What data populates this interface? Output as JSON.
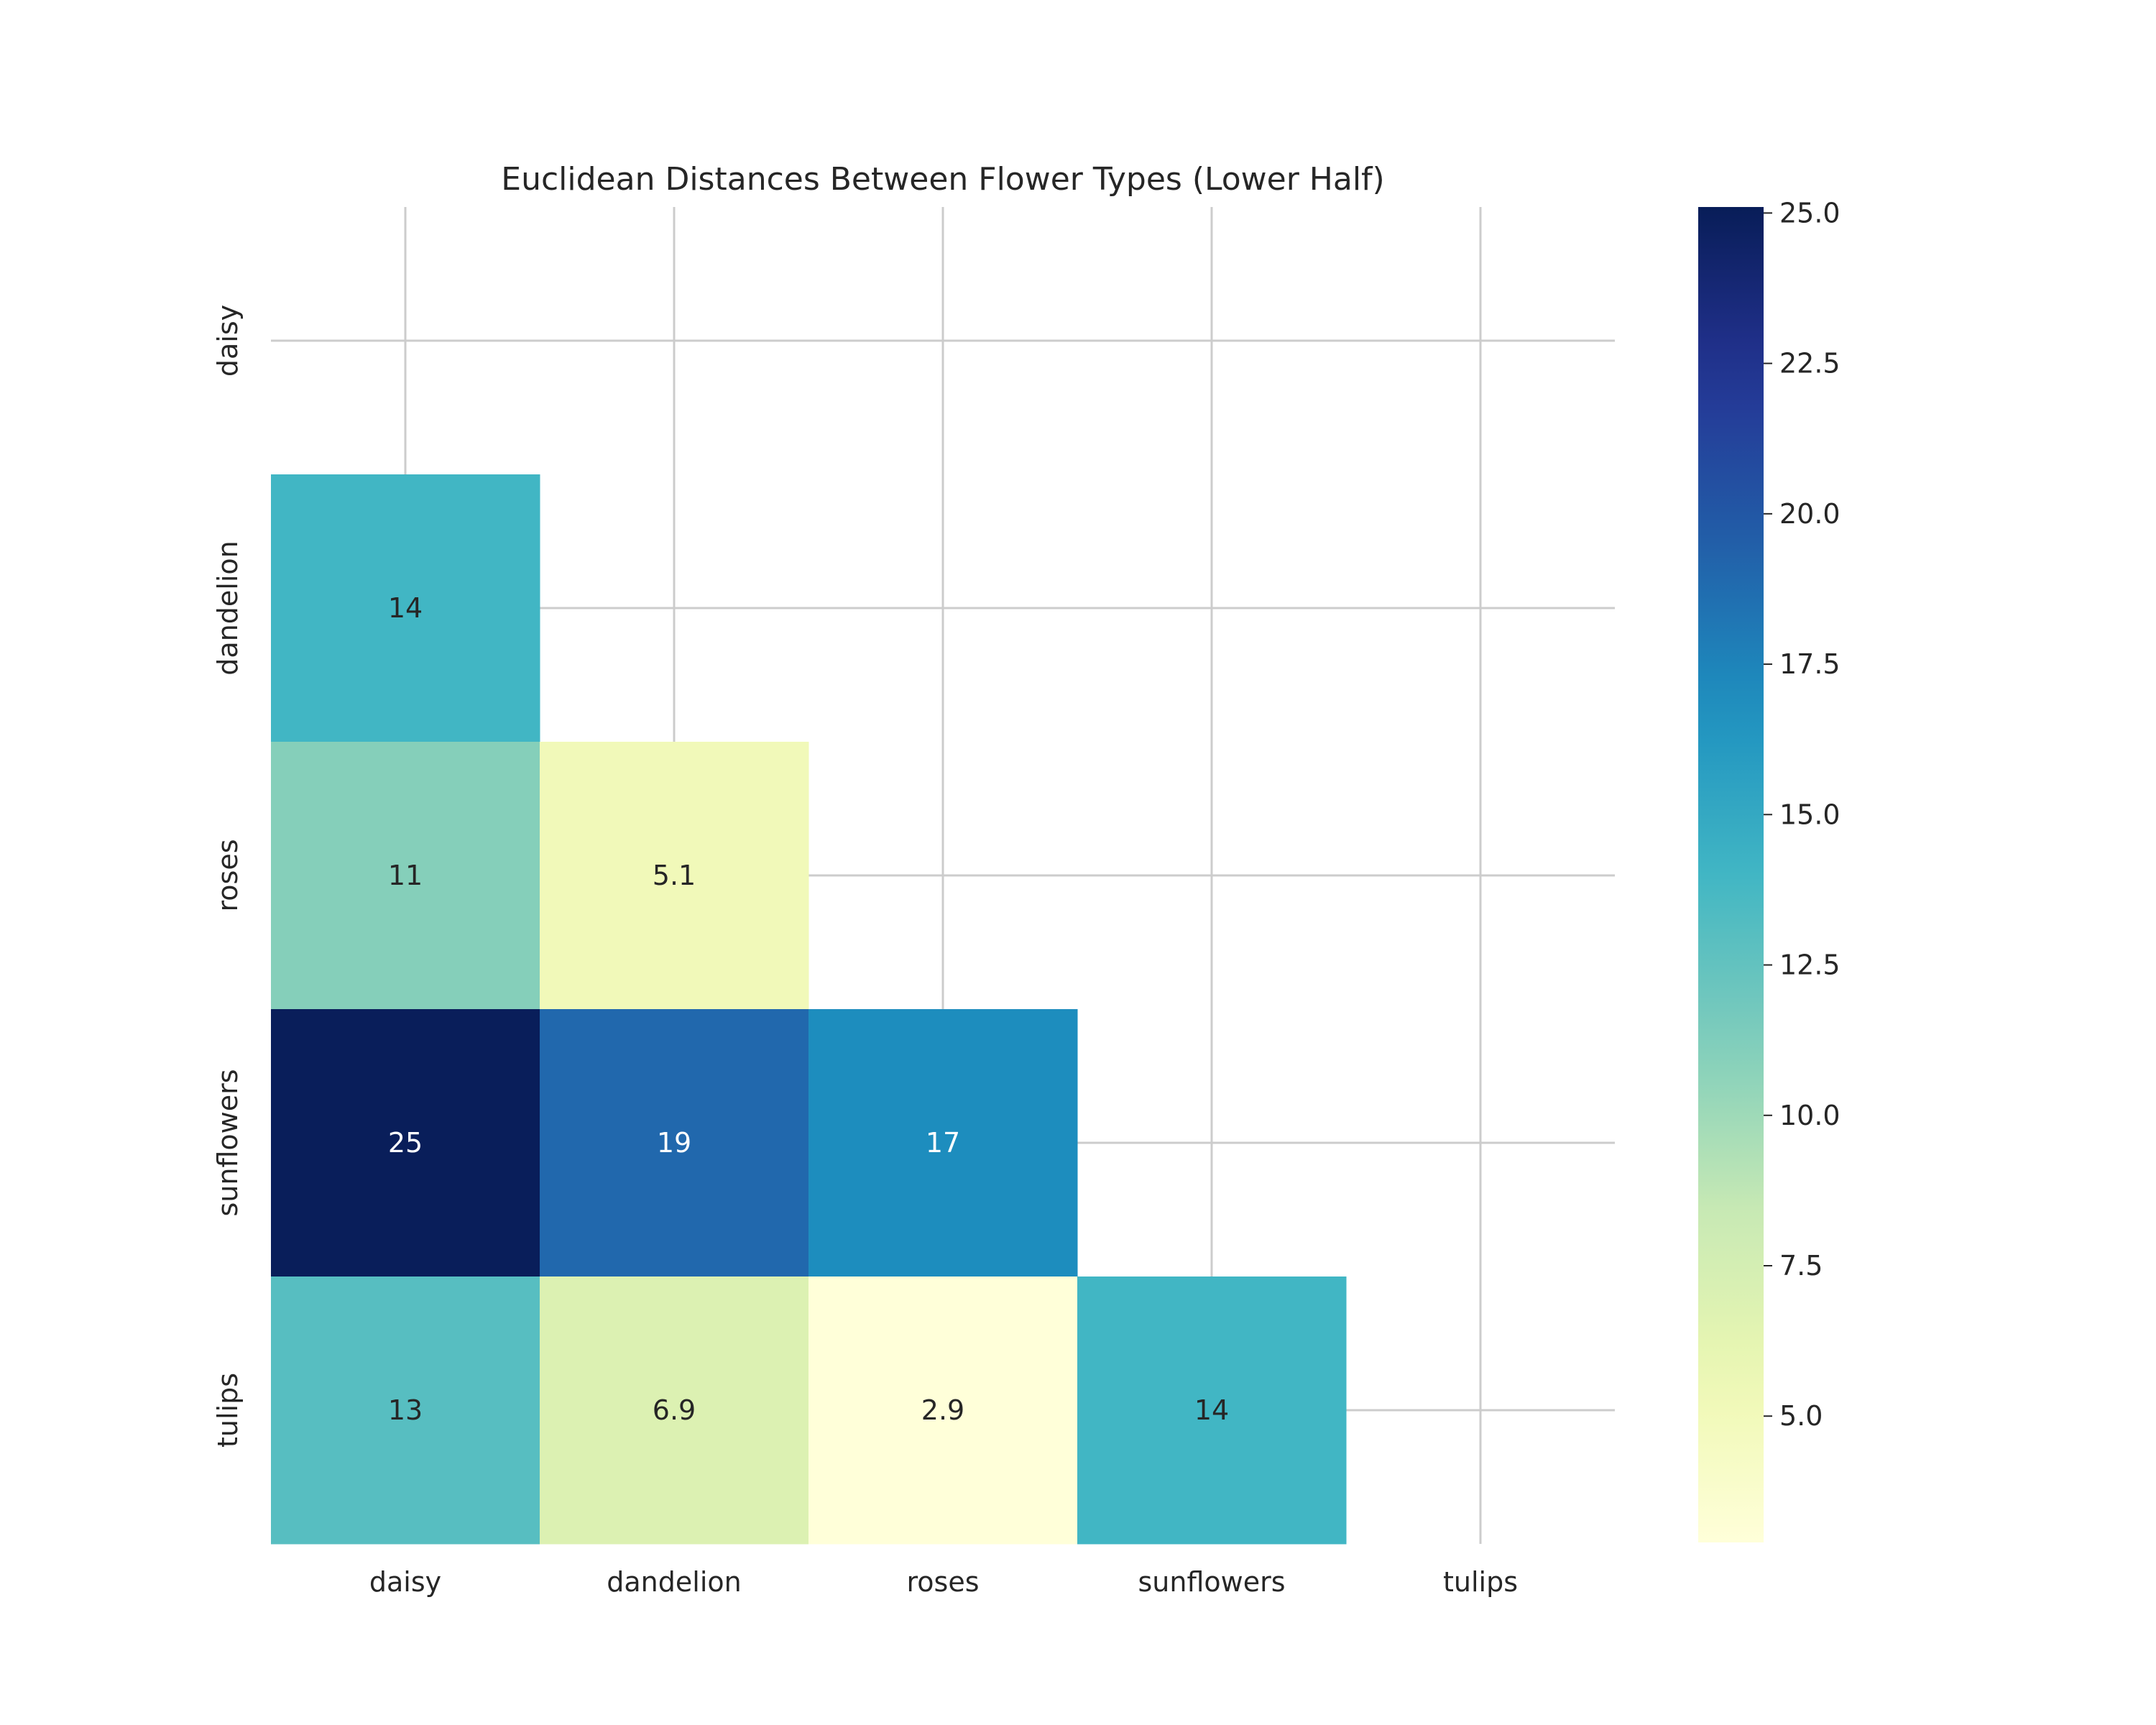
{
  "chart_data": {
    "type": "heatmap",
    "title": "Euclidean Distances Between Flower Types (Lower Half)",
    "xlabel": "",
    "ylabel": "",
    "x_categories": [
      "daisy",
      "dandelion",
      "roses",
      "sunflowers",
      "tulips"
    ],
    "y_categories": [
      "daisy",
      "dandelion",
      "roses",
      "sunflowers",
      "tulips"
    ],
    "mask": "upper triangle including diagonal",
    "cells": [
      {
        "row": "dandelion",
        "col": "daisy",
        "value": 14.0,
        "label": "14"
      },
      {
        "row": "roses",
        "col": "daisy",
        "value": 11.0,
        "label": "11"
      },
      {
        "row": "roses",
        "col": "dandelion",
        "value": 5.1,
        "label": "5.1"
      },
      {
        "row": "sunflowers",
        "col": "daisy",
        "value": 25.0,
        "label": "25"
      },
      {
        "row": "sunflowers",
        "col": "dandelion",
        "value": 19.0,
        "label": "19"
      },
      {
        "row": "sunflowers",
        "col": "roses",
        "value": 17.0,
        "label": "17"
      },
      {
        "row": "tulips",
        "col": "daisy",
        "value": 13.0,
        "label": "13"
      },
      {
        "row": "tulips",
        "col": "dandelion",
        "value": 6.9,
        "label": "6.9"
      },
      {
        "row": "tulips",
        "col": "roses",
        "value": 2.9,
        "label": "2.9"
      },
      {
        "row": "tulips",
        "col": "sunflowers",
        "value": 14.0,
        "label": "14"
      }
    ],
    "colorbar": {
      "colormap": "YlGnBu",
      "vmin": 2.9,
      "vmax": 25.1,
      "ticks": [
        5.0,
        7.5,
        10.0,
        12.5,
        15.0,
        17.5,
        20.0,
        22.5,
        25.0
      ],
      "tick_labels": [
        "5.0",
        "7.5",
        "10.0",
        "12.5",
        "15.0",
        "17.5",
        "20.0",
        "22.5",
        "25.0"
      ]
    },
    "grid": true
  }
}
